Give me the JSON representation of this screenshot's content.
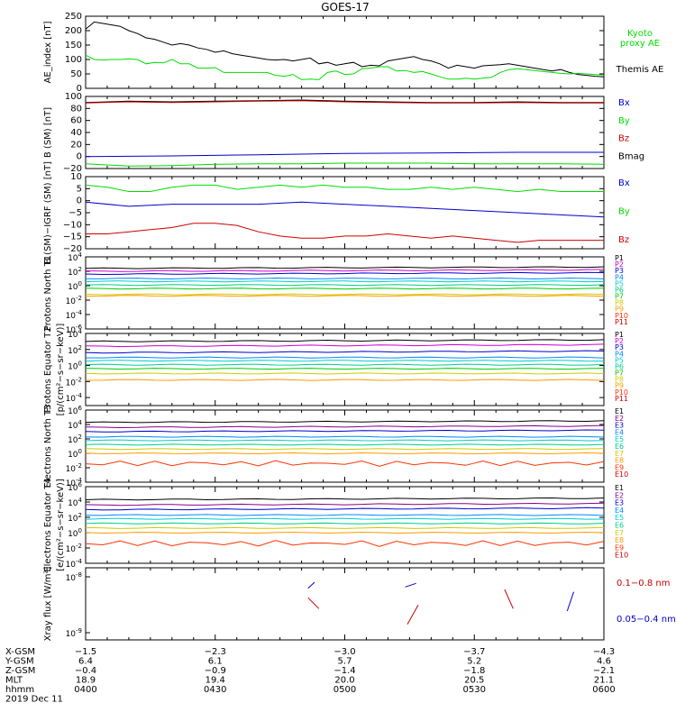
{
  "title": "GOES-17",
  "colors": {
    "black": "#000000",
    "green": "#00dd00",
    "blue": "#0000cc",
    "red": "#cc0000",
    "p": [
      "#000000",
      "#cc00cc",
      "#0000cc",
      "#0088ff",
      "#00cccc",
      "#00cc88",
      "#00cc00",
      "#cccc00",
      "#ff9900",
      "#ff3300",
      "#cc0000"
    ],
    "e": [
      "#000000",
      "#880088",
      "#0000cc",
      "#0088ff",
      "#00cccc",
      "#00cc88",
      "#cccc00",
      "#ff9900",
      "#ff3300",
      "#cc0000"
    ]
  },
  "chart_data": [
    {
      "type": "line",
      "ylabel": "AE_index [nT]",
      "ylim": [
        0,
        250
      ],
      "yticks": [
        "250",
        "200",
        "150",
        "100",
        "50",
        "0"
      ],
      "legend": [
        "Kyoto proxy AE",
        "Themis AE"
      ],
      "series": [
        {
          "name": "Themis AE",
          "color": "black",
          "x": [
            0,
            2,
            4,
            6,
            8,
            10,
            12,
            14,
            16,
            18,
            20,
            22,
            24,
            26,
            28,
            30,
            32,
            34,
            36,
            38,
            40,
            42,
            44,
            46,
            48,
            50,
            52,
            54,
            56,
            58,
            60,
            62,
            64,
            66,
            68,
            70,
            72,
            74,
            76,
            78,
            80,
            82,
            84,
            86,
            88,
            90,
            92,
            94,
            96,
            98,
            100,
            102,
            104,
            106,
            108,
            110,
            112,
            114,
            116,
            118,
            120
          ],
          "y": [
            205,
            230,
            225,
            220,
            215,
            200,
            190,
            175,
            170,
            160,
            150,
            155,
            150,
            140,
            135,
            125,
            130,
            120,
            115,
            110,
            105,
            100,
            98,
            100,
            95,
            100,
            105,
            85,
            90,
            80,
            85,
            90,
            75,
            80,
            78,
            95,
            100,
            105,
            110,
            100,
            95,
            85,
            70,
            80,
            75,
            70,
            78,
            80,
            82,
            85,
            80,
            75,
            70,
            65,
            60,
            65,
            55,
            48,
            45,
            42,
            40
          ]
        },
        {
          "name": "Kyoto proxy AE",
          "color": "green",
          "x": [
            0,
            2,
            4,
            6,
            8,
            10,
            12,
            14,
            16,
            18,
            20,
            22,
            24,
            26,
            28,
            30,
            32,
            34,
            36,
            38,
            40,
            42,
            44,
            46,
            48,
            50,
            52,
            54,
            56,
            58,
            60,
            62,
            64,
            66,
            68,
            70,
            72,
            74,
            76,
            78,
            80,
            82,
            84,
            86,
            88,
            90,
            92,
            94,
            96,
            98,
            100,
            102,
            104,
            106,
            108,
            110,
            112,
            114,
            116,
            118,
            120
          ],
          "y": [
            115,
            100,
            98,
            100,
            100,
            102,
            100,
            85,
            90,
            88,
            100,
            85,
            85,
            70,
            70,
            72,
            55,
            55,
            55,
            55,
            55,
            55,
            45,
            42,
            48,
            30,
            32,
            30,
            55,
            60,
            48,
            50,
            68,
            70,
            75,
            75,
            60,
            62,
            55,
            58,
            50,
            40,
            32,
            32,
            35,
            32,
            35,
            38,
            55,
            65,
            68,
            65,
            62,
            58,
            55,
            52,
            50,
            52,
            50,
            48,
            46
          ]
        }
      ]
    },
    {
      "type": "line",
      "ylabel": "B (SM) [nT]",
      "ylim": [
        -20,
        100
      ],
      "yticks": [
        "100",
        "80",
        "60",
        "40",
        "20",
        "0",
        "−20"
      ],
      "legend": [
        "Bx",
        "By",
        "Bz",
        "Bmag"
      ],
      "series": [
        {
          "name": "Bmag",
          "color": "black",
          "x": [
            0,
            10,
            20,
            30,
            40,
            50,
            60,
            70,
            80,
            90,
            100,
            110,
            120
          ],
          "y": [
            90,
            92,
            91,
            92,
            93,
            94,
            92,
            91,
            90,
            90,
            91,
            90,
            90
          ]
        },
        {
          "name": "Bz",
          "color": "red",
          "x": [
            0,
            10,
            20,
            30,
            40,
            50,
            60,
            70,
            80,
            90,
            100,
            110,
            120
          ],
          "y": [
            89,
            91,
            90,
            91,
            92,
            93,
            91,
            90,
            89,
            89,
            90,
            89,
            89
          ]
        },
        {
          "name": "Bx",
          "color": "blue",
          "x": [
            0,
            20,
            40,
            60,
            80,
            100,
            120
          ],
          "y": [
            0,
            1,
            3,
            5,
            6,
            7,
            7
          ]
        },
        {
          "name": "By",
          "color": "green",
          "x": [
            0,
            10,
            20,
            30,
            40,
            50,
            60,
            70,
            80,
            90,
            100,
            110,
            120
          ],
          "y": [
            -12,
            -16,
            -15,
            -13,
            -12,
            -12,
            -11,
            -11,
            -11,
            -12,
            -12,
            -12,
            -13
          ]
        }
      ]
    },
    {
      "type": "line",
      "ylabel": "B (SM)−IGRF (SM) [nT]",
      "ylim": [
        -22,
        12
      ],
      "yticks": [
        "10",
        "5",
        "0",
        "−5",
        "−10",
        "−15",
        "−20"
      ],
      "legend": [
        "Bx",
        "By",
        "Bz"
      ],
      "series": [
        {
          "name": "By",
          "color": "green",
          "x": [
            0,
            5,
            10,
            15,
            20,
            25,
            30,
            35,
            40,
            45,
            50,
            55,
            60,
            65,
            70,
            75,
            80,
            85,
            90,
            95,
            100,
            105,
            110,
            115,
            120
          ],
          "y": [
            8,
            7,
            5,
            5,
            7,
            8,
            8,
            6,
            7,
            8,
            7,
            8,
            7,
            7,
            6,
            6,
            7,
            6,
            7,
            6,
            5,
            6,
            5,
            5,
            5
          ]
        },
        {
          "name": "Bx",
          "color": "blue",
          "x": [
            0,
            10,
            20,
            30,
            40,
            50,
            60,
            70,
            80,
            90,
            100,
            110,
            120
          ],
          "y": [
            0,
            -2,
            -1,
            -1,
            -1,
            0,
            -1,
            -2,
            -3,
            -4,
            -5,
            -6,
            -7
          ]
        },
        {
          "name": "Bz",
          "color": "red",
          "x": [
            0,
            5,
            10,
            15,
            20,
            25,
            30,
            35,
            40,
            45,
            50,
            55,
            60,
            65,
            70,
            75,
            80,
            85,
            90,
            95,
            100,
            105,
            110,
            115,
            120
          ],
          "y": [
            -15,
            -15,
            -14,
            -13,
            -12,
            -10,
            -10,
            -11,
            -14,
            -16,
            -17,
            -17,
            -16,
            -16,
            -15,
            -16,
            -17,
            -16,
            -17,
            -18,
            -19,
            -18,
            -18,
            -18,
            -18
          ]
        }
      ]
    },
    {
      "type": "line",
      "ylabel": "Protons North T1",
      "ylog": true,
      "ylim_exp": [
        -6,
        4
      ],
      "yticks": [
        {
          "base": "10",
          "exp": "4"
        },
        {
          "base": "10",
          "exp": "2"
        },
        {
          "base": "10",
          "exp": "0"
        },
        {
          "base": "10",
          "exp": "-2"
        },
        {
          "base": "10",
          "exp": "-4"
        },
        {
          "base": "10",
          "exp": "-6"
        }
      ],
      "legend": [
        "P1",
        "P2",
        "P3",
        "P4",
        "P5",
        "P6",
        "P7",
        "P8",
        "P9",
        "P10",
        "P11"
      ],
      "log_levels": [
        2.4,
        2.0,
        1.6,
        1.0,
        0.6,
        0.1,
        -0.4,
        -1.2,
        -1.4,
        -99,
        -99
      ]
    },
    {
      "type": "line",
      "ylabel": "Protons Equator T2",
      "units": "[p/(cm²−s−sr−keV)]",
      "ylog": true,
      "ylim_exp": [
        -5,
        4
      ],
      "yticks": [
        {
          "base": "10",
          "exp": "4"
        },
        {
          "base": "10",
          "exp": "2"
        },
        {
          "base": "10",
          "exp": "0"
        },
        {
          "base": "10",
          "exp": "-2"
        },
        {
          "base": "10",
          "exp": "-4"
        }
      ],
      "legend": [
        "P1",
        "P2",
        "P3",
        "P4",
        "P5",
        "P6",
        "P7",
        "P8",
        "P9",
        "P10",
        "P11"
      ],
      "log_levels": [
        3.0,
        2.4,
        1.6,
        1.0,
        0.6,
        0.1,
        -0.4,
        -1.0,
        -1.8,
        -99,
        -99
      ]
    },
    {
      "type": "line",
      "ylabel": "Electrons North T3",
      "ylog": true,
      "ylim_exp": [
        -4,
        6
      ],
      "yticks": [
        {
          "base": "10",
          "exp": "6"
        },
        {
          "base": "10",
          "exp": "4"
        },
        {
          "base": "10",
          "exp": "2"
        },
        {
          "base": "10",
          "exp": "0"
        },
        {
          "base": "10",
          "exp": "-2"
        },
        {
          "base": "10",
          "exp": "-4"
        }
      ],
      "legend": [
        "E1",
        "E2",
        "E3",
        "E4",
        "E5",
        "E6",
        "E7",
        "E8",
        "E9",
        "E10"
      ],
      "log_levels": [
        4.3,
        3.6,
        3.0,
        2.3,
        1.8,
        1.2,
        0.6,
        0.0,
        -1.4,
        -99
      ]
    },
    {
      "type": "line",
      "ylabel": "Electrons Equator T4",
      "units": "[e/(cm²−s−sr−keV)]",
      "ylog": true,
      "ylim_exp": [
        -4,
        6
      ],
      "yticks": [
        {
          "base": "10",
          "exp": "6"
        },
        {
          "base": "10",
          "exp": "4"
        },
        {
          "base": "10",
          "exp": "2"
        },
        {
          "base": "10",
          "exp": "0"
        },
        {
          "base": "10",
          "exp": "-2"
        },
        {
          "base": "10",
          "exp": "-4"
        }
      ],
      "legend": [
        "E1",
        "E2",
        "E3",
        "E4",
        "E5",
        "E6",
        "E7",
        "E8",
        "E9",
        "E10"
      ],
      "log_levels": [
        4.3,
        3.6,
        3.0,
        2.3,
        1.8,
        1.2,
        0.6,
        0.0,
        -1.4,
        -99
      ]
    },
    {
      "type": "line",
      "ylabel": "Xray flux [W/m²]",
      "ylog": true,
      "yticks": [
        {
          "base": "10",
          "exp": "-8"
        },
        {
          "base": "10",
          "exp": "-9"
        }
      ],
      "legend": [
        "0.1−0.8 nm",
        "0.05−0.4 nm"
      ]
    }
  ],
  "xaxis": {
    "rows": [
      {
        "label": "X-GSM",
        "values": [
          "−1.5",
          "−2.3",
          "−3.0",
          "−3.7",
          "−4.3"
        ]
      },
      {
        "label": "Y-GSM",
        "values": [
          "6.4",
          "6.1",
          "5.7",
          "5.2",
          "4.6"
        ]
      },
      {
        "label": "Z-GSM",
        "values": [
          "−0.4",
          "−0.9",
          "−1.4",
          "−1.8",
          "−2.1"
        ]
      },
      {
        "label": "MLT",
        "values": [
          "18.9",
          "19.4",
          "20.0",
          "20.5",
          "21.1"
        ]
      },
      {
        "label": "hhmm",
        "values": [
          "0400",
          "0430",
          "0500",
          "0530",
          "0600"
        ]
      }
    ],
    "date": "2019 Dec 11"
  }
}
